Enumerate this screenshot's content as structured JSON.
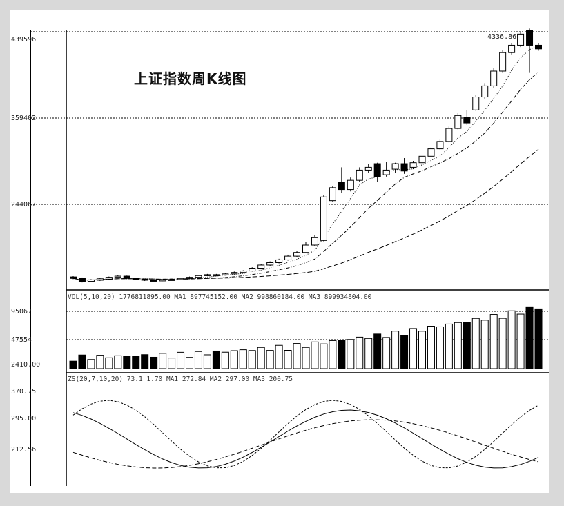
{
  "chart_data": {
    "type": "candlestick",
    "title": "上证指数周K线图",
    "panels": [
      {
        "name": "price",
        "y_ticks": [
          "439596",
          "359402",
          "244067"
        ],
        "annotation": "4336.86",
        "candles": [
          [
            1048,
            1040,
            1052,
            1036
          ],
          [
            1040,
            1022,
            1045,
            1018
          ],
          [
            1024,
            1032,
            1036,
            1020
          ],
          [
            1030,
            1038,
            1041,
            1026
          ],
          [
            1036,
            1046,
            1050,
            1033
          ],
          [
            1046,
            1052,
            1056,
            1042
          ],
          [
            1052,
            1040,
            1055,
            1036
          ],
          [
            1040,
            1035,
            1044,
            1031
          ],
          [
            1036,
            1030,
            1039,
            1026
          ],
          [
            1030,
            1028,
            1033,
            1024
          ],
          [
            1028,
            1032,
            1035,
            1025
          ],
          [
            1032,
            1034,
            1038,
            1028
          ],
          [
            1034,
            1040,
            1044,
            1031
          ],
          [
            1040,
            1046,
            1050,
            1037
          ],
          [
            1046,
            1055,
            1059,
            1043
          ],
          [
            1055,
            1060,
            1064,
            1052
          ],
          [
            1060,
            1058,
            1064,
            1054
          ],
          [
            1058,
            1064,
            1068,
            1055
          ],
          [
            1064,
            1072,
            1077,
            1061
          ],
          [
            1072,
            1080,
            1084,
            1069
          ],
          [
            1080,
            1095,
            1100,
            1077
          ],
          [
            1095,
            1112,
            1118,
            1092
          ],
          [
            1112,
            1125,
            1132,
            1108
          ],
          [
            1125,
            1140,
            1146,
            1121
          ],
          [
            1140,
            1160,
            1168,
            1136
          ],
          [
            1160,
            1180,
            1188,
            1155
          ],
          [
            1180,
            1220,
            1235,
            1176
          ],
          [
            1220,
            1260,
            1275,
            1216
          ],
          [
            1245,
            1480,
            1490,
            1240
          ],
          [
            1460,
            1530,
            1540,
            1455
          ],
          [
            1560,
            1520,
            1640,
            1500
          ],
          [
            1520,
            1570,
            1585,
            1510
          ],
          [
            1570,
            1625,
            1640,
            1560
          ],
          [
            1625,
            1640,
            1660,
            1610
          ],
          [
            1660,
            1590,
            1665,
            1560
          ],
          [
            1600,
            1625,
            1670,
            1590
          ],
          [
            1630,
            1660,
            1665,
            1610
          ],
          [
            1660,
            1620,
            1690,
            1605
          ],
          [
            1640,
            1665,
            1675,
            1630
          ],
          [
            1665,
            1700,
            1705,
            1655
          ],
          [
            1700,
            1740,
            1750,
            1695
          ],
          [
            1740,
            1780,
            1790,
            1735
          ],
          [
            1780,
            1850,
            1860,
            1775
          ],
          [
            1850,
            1920,
            1935,
            1845
          ],
          [
            1910,
            1880,
            1950,
            1870
          ],
          [
            1950,
            2020,
            2030,
            1945
          ],
          [
            2020,
            2080,
            2095,
            2010
          ],
          [
            2080,
            2160,
            2175,
            2070
          ],
          [
            2160,
            2260,
            2275,
            2150
          ],
          [
            2260,
            2300,
            2310,
            2250
          ],
          [
            2300,
            2360,
            2370,
            2290
          ],
          [
            2380,
            2300,
            2390,
            2150
          ],
          [
            2300,
            2280,
            2310,
            2270
          ]
        ]
      },
      {
        "name": "volume",
        "y_ticks": [
          "95067",
          "47554",
          "2410.00"
        ],
        "info_text": "VOL(5,10,20) 1776811895.00 MA1 897745152.00 MA2 998860184.00 MA3 899934804.00"
      },
      {
        "name": "indicator",
        "y_ticks": [
          "370.75",
          "295.00",
          "212.56"
        ],
        "info_text": "ZS(20,7,10,20) 73.1 1.70 MA1 272.84 MA2 297.00 MA3 200.75"
      }
    ]
  }
}
